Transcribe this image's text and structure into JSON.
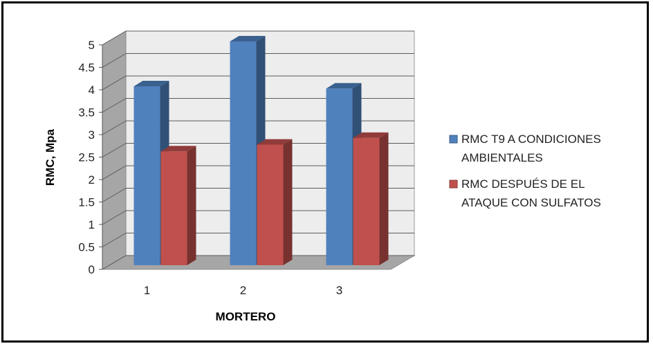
{
  "chart_data": {
    "type": "bar",
    "categories": [
      "1",
      "2",
      "3"
    ],
    "series": [
      {
        "name": "RMC T9 A CONDICIONES AMBIENTALES",
        "legend_lines": [
          "RMC T9 A CONDICIONES",
          "AMBIENTALES"
        ],
        "values": [
          4.0,
          5.0,
          3.95
        ],
        "color": "#4F81BD"
      },
      {
        "name": "RMC DESPUÉS DE EL ATAQUE CON SULFATOS",
        "legend_lines": [
          "RMC DESPUÉS DE EL",
          "ATAQUE CON SULFATOS"
        ],
        "values": [
          2.55,
          2.7,
          2.85
        ],
        "color": "#C0504D"
      }
    ],
    "xlabel": "MORTERO",
    "ylabel": "RMC, Mpa",
    "ylim": [
      0,
      5
    ],
    "yticks": [
      "0",
      "0.5",
      "1",
      "1.5",
      "2",
      "2.5",
      "3",
      "3.5",
      "4",
      "4.5",
      "5"
    ],
    "grid": true,
    "legend_position": "right"
  }
}
